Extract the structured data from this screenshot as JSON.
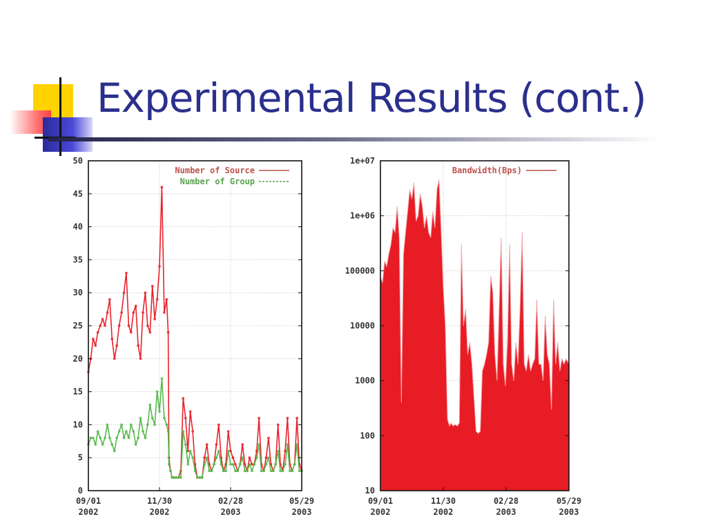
{
  "slide": {
    "title": "Experimental Results (cont.)"
  },
  "colors": {
    "title": "#2b2f8c",
    "source_series": "#e8202a",
    "group_series": "#56b84a",
    "bandwidth_fill": "#e81c24",
    "legend_text_red": "#c0504d",
    "legend_text_green": "#5aa14f"
  },
  "chart_data": [
    {
      "type": "line",
      "title": "",
      "xlabel": "",
      "ylabel": "",
      "ylim": [
        0,
        50
      ],
      "yticks": [
        "0",
        "5",
        "10",
        "15",
        "20",
        "25",
        "30",
        "35",
        "40",
        "45",
        "50"
      ],
      "xticks": [
        {
          "line1": "09/01",
          "line2": "2002"
        },
        {
          "line1": "11/30",
          "line2": "2002"
        },
        {
          "line1": "02/28",
          "line2": "2003"
        },
        {
          "line1": "05/29",
          "line2": "2003"
        }
      ],
      "xlim_days": [
        0,
        270
      ],
      "grid": true,
      "legend": "top-right",
      "series": [
        {
          "name": "Number of Source",
          "x": [
            0,
            3,
            6,
            9,
            12,
            15,
            18,
            21,
            24,
            27,
            30,
            33,
            36,
            39,
            42,
            45,
            48,
            51,
            54,
            57,
            60,
            63,
            66,
            69,
            72,
            75,
            78,
            81,
            84,
            87,
            90,
            93,
            96,
            99,
            101,
            102,
            104,
            106,
            108,
            111,
            114,
            117,
            120,
            123,
            126,
            129,
            132,
            135,
            138,
            141,
            144,
            147,
            150,
            153,
            156,
            159,
            162,
            165,
            168,
            171,
            174,
            177,
            180,
            183,
            186,
            189,
            192,
            195,
            198,
            201,
            204,
            207,
            210,
            213,
            216,
            219,
            222,
            225,
            228,
            231,
            234,
            237,
            240,
            243,
            246,
            249,
            252,
            255,
            258,
            261,
            264,
            267,
            270
          ],
          "values": [
            18,
            20,
            23,
            22,
            24,
            25,
            26,
            25,
            27,
            29,
            23,
            20,
            22,
            25,
            27,
            30,
            33,
            25,
            24,
            27,
            28,
            22,
            20,
            27,
            30,
            25,
            24,
            31,
            26,
            29,
            34,
            46,
            27,
            29,
            24,
            5,
            3,
            2,
            2,
            2,
            2,
            3,
            14,
            11,
            6,
            12,
            9,
            4,
            2,
            2,
            2,
            5,
            7,
            4,
            3,
            4,
            7,
            10,
            5,
            3,
            4,
            9,
            6,
            5,
            4,
            3,
            4,
            7,
            4,
            3,
            5,
            4,
            4,
            6,
            11,
            4,
            3,
            5,
            8,
            4,
            3,
            4,
            10,
            4,
            3,
            6,
            11,
            4,
            3,
            4,
            11,
            4,
            3
          ]
        },
        {
          "name": "Number of Group",
          "x": [
            0,
            3,
            6,
            9,
            12,
            15,
            18,
            21,
            24,
            27,
            30,
            33,
            36,
            39,
            42,
            45,
            48,
            51,
            54,
            57,
            60,
            63,
            66,
            69,
            72,
            75,
            78,
            81,
            84,
            87,
            90,
            93,
            96,
            99,
            101,
            102,
            104,
            106,
            108,
            111,
            114,
            117,
            120,
            123,
            126,
            129,
            132,
            135,
            138,
            141,
            144,
            147,
            150,
            153,
            156,
            159,
            162,
            165,
            168,
            171,
            174,
            177,
            180,
            183,
            186,
            189,
            192,
            195,
            198,
            201,
            204,
            207,
            210,
            213,
            216,
            219,
            222,
            225,
            228,
            231,
            234,
            237,
            240,
            243,
            246,
            249,
            252,
            255,
            258,
            261,
            264,
            267,
            270
          ],
          "values": [
            7,
            8,
            8,
            7,
            9,
            8,
            7,
            8,
            10,
            8,
            7,
            6,
            8,
            9,
            10,
            8,
            9,
            8,
            10,
            9,
            7,
            8,
            11,
            9,
            8,
            10,
            13,
            11,
            10,
            15,
            12,
            17,
            11,
            10,
            9,
            4,
            3,
            2,
            2,
            2,
            2,
            2,
            9,
            7,
            4,
            6,
            5,
            3,
            2,
            2,
            2,
            4,
            5,
            3,
            3,
            4,
            5,
            6,
            4,
            3,
            3,
            6,
            4,
            4,
            3,
            3,
            4,
            5,
            3,
            3,
            4,
            3,
            4,
            5,
            7,
            3,
            3,
            4,
            5,
            3,
            3,
            4,
            6,
            3,
            3,
            4,
            7,
            3,
            3,
            4,
            7,
            3,
            3
          ]
        }
      ]
    },
    {
      "type": "area",
      "title": "",
      "xlabel": "",
      "ylabel": "",
      "yscale": "log",
      "ylim": [
        10,
        10000000
      ],
      "yticks": [
        "10",
        "100",
        "1000",
        "10000",
        "100000",
        "1e+06",
        "1e+07"
      ],
      "xticks": [
        {
          "line1": "09/01",
          "line2": "2002"
        },
        {
          "line1": "11/30",
          "line2": "2002"
        },
        {
          "line1": "02/28",
          "line2": "2003"
        },
        {
          "line1": "05/29",
          "line2": "2003"
        }
      ],
      "xlim_days": [
        0,
        270
      ],
      "grid": true,
      "legend": "top-right",
      "series": [
        {
          "name": "Bandwidth(Bps)",
          "x": [
            0,
            3,
            6,
            9,
            12,
            15,
            18,
            21,
            24,
            27,
            30,
            33,
            36,
            39,
            42,
            45,
            48,
            51,
            54,
            57,
            60,
            63,
            66,
            69,
            72,
            75,
            78,
            81,
            84,
            87,
            90,
            93,
            96,
            99,
            101,
            104,
            107,
            110,
            113,
            116,
            119,
            122,
            125,
            128,
            131,
            134,
            137,
            140,
            143,
            146,
            149,
            152,
            155,
            158,
            161,
            164,
            167,
            170,
            173,
            176,
            179,
            182,
            185,
            188,
            191,
            194,
            197,
            200,
            203,
            206,
            209,
            212,
            215,
            218,
            221,
            224,
            227,
            230,
            233,
            236,
            239,
            242,
            245,
            248,
            251,
            254,
            257,
            260,
            263,
            266,
            270
          ],
          "values": [
            80000,
            60000,
            150000,
            120000,
            200000,
            300000,
            600000,
            500000,
            1500000,
            400000,
            400,
            200000,
            500000,
            1200000,
            3000000,
            2000000,
            4000000,
            800000,
            1000000,
            2500000,
            1500000,
            600000,
            1000000,
            500000,
            400000,
            1200000,
            600000,
            3000000,
            4500000,
            500000,
            50000,
            10000,
            200,
            150,
            170,
            150,
            160,
            150,
            170,
            300000,
            10000,
            20000,
            3000,
            5000,
            2000,
            500,
            120,
            110,
            120,
            1500,
            2000,
            3000,
            5000,
            80000,
            40000,
            3000,
            1000,
            20000,
            400000,
            2000,
            800,
            5000,
            300000,
            2000,
            1000,
            5000,
            2000,
            20000,
            500000,
            2000,
            1500,
            3000,
            1500,
            2000,
            2500,
            30000,
            2000,
            2000,
            1000,
            15000,
            3000,
            2000,
            300,
            30000,
            2000,
            5000,
            1500,
            2500,
            2000,
            2500,
            2000
          ]
        }
      ]
    }
  ]
}
